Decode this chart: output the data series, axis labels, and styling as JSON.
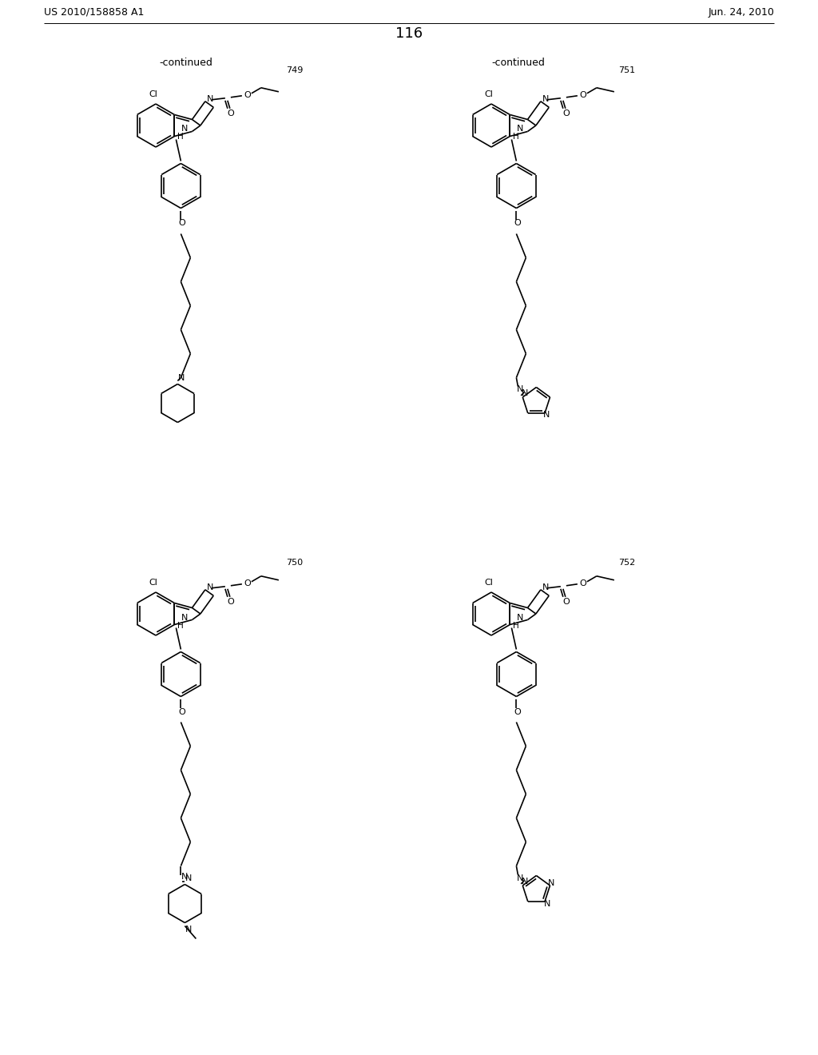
{
  "page_title_left": "US 2010/158858 A1",
  "page_title_right": "Jun. 24, 2010",
  "page_number": "116",
  "continued_text": "-continued",
  "compound_numbers": [
    "749",
    "751",
    "750",
    "752"
  ],
  "background_color": "#ffffff",
  "text_color": "#000000",
  "line_color": "#000000",
  "line_width": 1.2
}
